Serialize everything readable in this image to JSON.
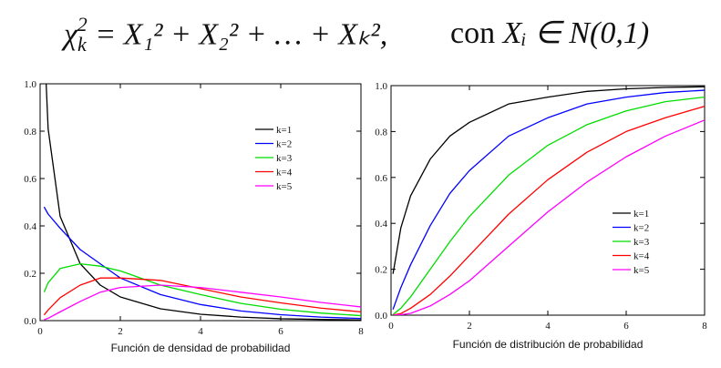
{
  "formula": {
    "lhs": "χ",
    "lhs_sub": "k",
    "lhs_sup": "2",
    "rhs": "= X₁² + X₂² + … + Xₖ²,",
    "condition_word": "con",
    "condition": "Xᵢ ∈ N(0,1)"
  },
  "chart_data": [
    {
      "type": "line",
      "title": "",
      "xlabel": "Función de densidad de probabilidad",
      "ylabel": "",
      "xlim": [
        0,
        8
      ],
      "ylim": [
        0,
        1.0
      ],
      "xticks": [
        0,
        2,
        4,
        6,
        8
      ],
      "yticks": [
        0.0,
        0.2,
        0.4,
        0.6,
        0.8,
        1.0
      ],
      "ytick_labels": [
        "0.0",
        "0.2",
        "0.4",
        "0.6",
        "0.8",
        "1.0"
      ],
      "xtick_labels": [
        "0",
        "2",
        "4",
        "6",
        "8"
      ],
      "legend_position": "top-right",
      "grid": false,
      "x": [
        0.1,
        0.2,
        0.5,
        1,
        1.5,
        2,
        3,
        4,
        5,
        6,
        7,
        8
      ],
      "series": [
        {
          "name": "k=1",
          "color": "#000000",
          "values": [
            1.2,
            0.81,
            0.44,
            0.24,
            0.15,
            0.1,
            0.05,
            0.027,
            0.015,
            0.008,
            0.005,
            0.003
          ]
        },
        {
          "name": "k=2",
          "color": "#0000ff",
          "values": [
            0.48,
            0.45,
            0.39,
            0.3,
            0.24,
            0.18,
            0.11,
            0.068,
            0.041,
            0.025,
            0.015,
            0.009
          ]
        },
        {
          "name": "k=3",
          "color": "#00dd00",
          "values": [
            0.12,
            0.16,
            0.22,
            0.24,
            0.23,
            0.21,
            0.15,
            0.11,
            0.073,
            0.048,
            0.032,
            0.021
          ]
        },
        {
          "name": "k=4",
          "color": "#ff0000",
          "values": [
            0.024,
            0.045,
            0.097,
            0.15,
            0.18,
            0.18,
            0.17,
            0.135,
            0.1,
            0.075,
            0.053,
            0.037
          ]
        },
        {
          "name": "k=5",
          "color": "#ff00ff",
          "values": [
            0.004,
            0.01,
            0.037,
            0.081,
            0.12,
            0.14,
            0.15,
            0.14,
            0.12,
            0.1,
            0.077,
            0.058
          ]
        }
      ]
    },
    {
      "type": "line",
      "title": "",
      "xlabel": "Función de distribución de probabilidad",
      "ylabel": "",
      "xlim": [
        0,
        8
      ],
      "ylim": [
        0,
        1.0
      ],
      "xticks": [
        0,
        2,
        4,
        6,
        8
      ],
      "yticks": [
        0.0,
        0.2,
        0.4,
        0.6,
        0.8,
        1.0
      ],
      "ytick_labels": [
        "0.0",
        "0.2",
        "0.4",
        "0.6",
        "0.8",
        "1.0"
      ],
      "xtick_labels": [
        "0",
        "2",
        "4",
        "6",
        "8"
      ],
      "legend_position": "bottom-right",
      "grid": false,
      "x": [
        0.05,
        0.25,
        0.5,
        1,
        1.5,
        2,
        3,
        4,
        5,
        6,
        7,
        8
      ],
      "series": [
        {
          "name": "k=1",
          "color": "#000000",
          "values": [
            0.18,
            0.38,
            0.52,
            0.68,
            0.78,
            0.84,
            0.92,
            0.95,
            0.975,
            0.986,
            0.992,
            0.995
          ]
        },
        {
          "name": "k=2",
          "color": "#0000ff",
          "values": [
            0.025,
            0.12,
            0.22,
            0.39,
            0.53,
            0.63,
            0.78,
            0.86,
            0.92,
            0.95,
            0.97,
            0.98
          ]
        },
        {
          "name": "k=3",
          "color": "#00dd00",
          "values": [
            0.003,
            0.03,
            0.08,
            0.2,
            0.32,
            0.43,
            0.61,
            0.74,
            0.83,
            0.89,
            0.93,
            0.95
          ]
        },
        {
          "name": "k=4",
          "color": "#ff0000",
          "values": [
            0.0006,
            0.007,
            0.03,
            0.09,
            0.17,
            0.26,
            0.44,
            0.59,
            0.71,
            0.8,
            0.86,
            0.91
          ]
        },
        {
          "name": "k=5",
          "color": "#ff00ff",
          "values": [
            0.0001,
            0.002,
            0.008,
            0.04,
            0.09,
            0.15,
            0.3,
            0.45,
            0.58,
            0.69,
            0.78,
            0.85
          ]
        }
      ]
    }
  ]
}
